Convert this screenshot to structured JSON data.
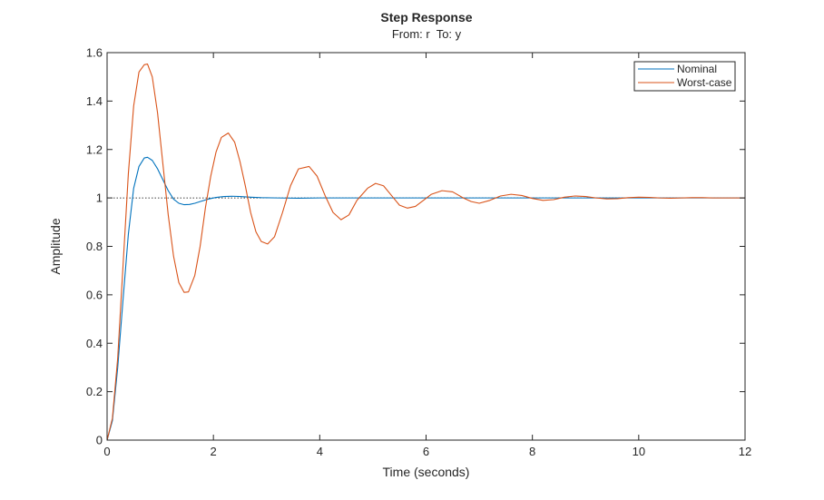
{
  "chart_data": {
    "type": "line",
    "title": "Step Response",
    "subtitle": "From: r  To: y",
    "xlabel": "Time (seconds)",
    "ylabel": "Amplitude",
    "xlim": [
      0,
      12
    ],
    "ylim": [
      0,
      1.6
    ],
    "xticks": [
      0,
      2,
      4,
      6,
      8,
      10,
      12
    ],
    "yticks": [
      0,
      0.2,
      0.4,
      0.6,
      0.8,
      1,
      1.2,
      1.4,
      1.6
    ],
    "xtick_labels": [
      "0",
      "2",
      "4",
      "6",
      "8",
      "10",
      "12"
    ],
    "ytick_labels": [
      "0",
      "0.2",
      "0.4",
      "0.6",
      "0.8",
      "1",
      "1.2",
      "1.4",
      "1.6"
    ],
    "grid": false,
    "legend_position": "top-right",
    "reference_line": {
      "y": 1,
      "style": "dotted",
      "color": "#000000"
    },
    "series": [
      {
        "name": "Nominal",
        "color": "#0072BD",
        "x": [
          0,
          0.1,
          0.2,
          0.3,
          0.4,
          0.5,
          0.6,
          0.7,
          0.76,
          0.85,
          0.95,
          1.05,
          1.15,
          1.25,
          1.35,
          1.45,
          1.55,
          1.65,
          1.75,
          1.9,
          2.05,
          2.2,
          2.35,
          2.5,
          2.7,
          2.9,
          3.2,
          3.6,
          4.0,
          5.0,
          6.0,
          7.0,
          8.0,
          9.0,
          10.0,
          11.0,
          12.0
        ],
        "y": [
          0,
          0.08,
          0.3,
          0.58,
          0.85,
          1.04,
          1.13,
          1.165,
          1.168,
          1.155,
          1.12,
          1.075,
          1.03,
          0.995,
          0.978,
          0.972,
          0.973,
          0.978,
          0.985,
          0.995,
          1.002,
          1.006,
          1.007,
          1.006,
          1.003,
          1.001,
          1.0,
          0.999,
          1.0,
          1.0,
          1.0,
          1.0,
          1.0,
          1.0,
          1.0,
          1.0,
          1.0
        ]
      },
      {
        "name": "Worst-case",
        "color": "#D95319",
        "x": [
          0,
          0.1,
          0.2,
          0.3,
          0.4,
          0.5,
          0.6,
          0.7,
          0.76,
          0.85,
          0.95,
          1.05,
          1.15,
          1.25,
          1.35,
          1.45,
          1.53,
          1.65,
          1.75,
          1.85,
          1.95,
          2.05,
          2.15,
          2.28,
          2.4,
          2.5,
          2.6,
          2.7,
          2.8,
          2.9,
          3.02,
          3.15,
          3.3,
          3.45,
          3.6,
          3.8,
          3.95,
          4.1,
          4.25,
          4.4,
          4.55,
          4.7,
          4.9,
          5.05,
          5.2,
          5.35,
          5.5,
          5.65,
          5.8,
          5.95,
          6.1,
          6.3,
          6.5,
          6.7,
          6.85,
          7.0,
          7.2,
          7.4,
          7.6,
          7.8,
          8.0,
          8.2,
          8.4,
          8.6,
          8.8,
          9.0,
          9.2,
          9.4,
          9.6,
          9.8,
          10.0,
          10.2,
          10.4,
          10.6,
          10.8,
          11.0,
          11.2,
          11.4,
          11.6,
          11.8,
          12.0
        ],
        "y": [
          0,
          0.09,
          0.34,
          0.72,
          1.1,
          1.38,
          1.52,
          1.55,
          1.553,
          1.5,
          1.35,
          1.14,
          0.93,
          0.76,
          0.65,
          0.61,
          0.612,
          0.68,
          0.8,
          0.96,
          1.09,
          1.19,
          1.25,
          1.268,
          1.23,
          1.15,
          1.05,
          0.94,
          0.86,
          0.82,
          0.81,
          0.84,
          0.94,
          1.05,
          1.12,
          1.13,
          1.09,
          1.01,
          0.94,
          0.91,
          0.93,
          0.99,
          1.04,
          1.06,
          1.05,
          1.01,
          0.97,
          0.958,
          0.965,
          0.99,
          1.015,
          1.03,
          1.025,
          1.0,
          0.985,
          0.978,
          0.99,
          1.008,
          1.015,
          1.01,
          0.998,
          0.99,
          0.993,
          1.003,
          1.008,
          1.006,
          1.0,
          0.996,
          0.997,
          1.001,
          1.003,
          1.002,
          1.0,
          0.999,
          1.0,
          1.001,
          1.001,
          1.0,
          1.0,
          1.0,
          1.0
        ]
      }
    ]
  }
}
